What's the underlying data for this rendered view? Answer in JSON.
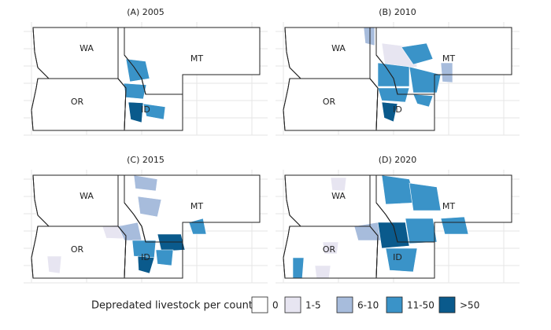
{
  "panels": [
    {
      "title": "(A) 2005",
      "states": [
        "WA",
        "OR",
        "ID",
        "MT"
      ]
    },
    {
      "title": "(B) 2010",
      "states": [
        "WA",
        "OR",
        "ID",
        "MT"
      ]
    },
    {
      "title": "(C) 2015",
      "states": [
        "WA",
        "OR",
        "ID",
        "MT"
      ]
    },
    {
      "title": "(D) 2020",
      "states": [
        "WA",
        "OR",
        "ID",
        "MT"
      ]
    }
  ],
  "legend": {
    "title": "Depredated livestock per county",
    "items": [
      {
        "label": "0",
        "color": "#ffffff"
      },
      {
        "label": "1-5",
        "color": "#e7e5f1"
      },
      {
        "label": "6-10",
        "color": "#a7bcdc"
      },
      {
        "label": "11-50",
        "color": "#3a93c8"
      },
      {
        "label": ">50",
        "color": "#0a5a8c"
      }
    ]
  }
}
